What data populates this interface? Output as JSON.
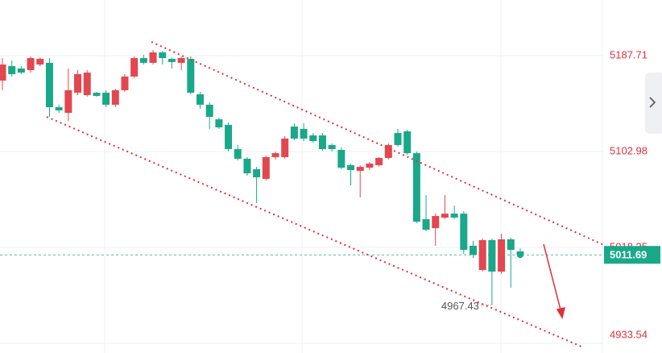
{
  "chart_data": {
    "type": "candlestick",
    "ohlc": [
      [
        5165.6,
        5185.5,
        5157.1,
        5179.8
      ],
      [
        5178.4,
        5183.4,
        5169.2,
        5171.3
      ],
      [
        5176.3,
        5178.4,
        5171.3,
        5172.7
      ],
      [
        5174.9,
        5187.0,
        5172.7,
        5185.5
      ],
      [
        5179.8,
        5186.0,
        5178.4,
        5184.8
      ],
      [
        5181.3,
        5185.5,
        5133.6,
        5142.1
      ],
      [
        5142.1,
        5144.3,
        5137.1,
        5139.3
      ],
      [
        5137.1,
        5176.3,
        5130.0,
        5157.1
      ],
      [
        5154.9,
        5174.9,
        5152.8,
        5171.3
      ],
      [
        5152.8,
        5174.9,
        5151.4,
        5172.7
      ],
      [
        5154.9,
        5155.6,
        5151.4,
        5152.1
      ],
      [
        5154.9,
        5157.1,
        5142.1,
        5144.3
      ],
      [
        5144.3,
        5158.5,
        5142.1,
        5157.1
      ],
      [
        5157.1,
        5171.3,
        5155.6,
        5169.2
      ],
      [
        5169.2,
        5187.0,
        5167.8,
        5185.5
      ],
      [
        5185.5,
        5188.4,
        5179.8,
        5181.3
      ],
      [
        5181.3,
        5192.7,
        5179.8,
        5190.5
      ],
      [
        5190.5,
        5192.0,
        5179.8,
        5185.5
      ],
      [
        5184.8,
        5186.0,
        5176.3,
        5182.0
      ],
      [
        5181.3,
        5187.0,
        5174.9,
        5185.5
      ],
      [
        5184.8,
        5187.0,
        5153.5,
        5154.9
      ],
      [
        5153.5,
        5155.6,
        5140.7,
        5144.3
      ],
      [
        5144.3,
        5146.4,
        5122.9,
        5133.6
      ],
      [
        5131.4,
        5132.8,
        5122.9,
        5124.3
      ],
      [
        5126.5,
        5128.6,
        5103.0,
        5105.1
      ],
      [
        5105.1,
        5108.7,
        5095.2,
        5096.6
      ],
      [
        5096.6,
        5098.0,
        5081.6,
        5083.7
      ],
      [
        5087.3,
        5089.4,
        5057.4,
        5080.2
      ],
      [
        5078.8,
        5099.4,
        5077.3,
        5098.0
      ],
      [
        5098.0,
        5102.9,
        5095.9,
        5101.5
      ],
      [
        5098.0,
        5116.5,
        5096.6,
        5114.4
      ],
      [
        5125.0,
        5127.9,
        5112.9,
        5114.4
      ],
      [
        5122.9,
        5127.9,
        5112.2,
        5114.4
      ],
      [
        5117.2,
        5119.3,
        5110.8,
        5112.2
      ],
      [
        5117.2,
        5119.3,
        5103.7,
        5105.1
      ],
      [
        5108.7,
        5110.1,
        5103.0,
        5105.1
      ],
      [
        5104.4,
        5106.6,
        5087.3,
        5088.7
      ],
      [
        5090.9,
        5092.3,
        5073.1,
        5086.6
      ],
      [
        5085.9,
        5090.9,
        5062.4,
        5089.4
      ],
      [
        5088.7,
        5093.7,
        5086.6,
        5092.3
      ],
      [
        5090.9,
        5098.0,
        5089.4,
        5097.3
      ],
      [
        5097.3,
        5110.1,
        5095.9,
        5108.7
      ],
      [
        5119.3,
        5122.9,
        5107.3,
        5108.7
      ],
      [
        5120.8,
        5122.2,
        5100.1,
        5101.5
      ],
      [
        5101.5,
        5103.0,
        5039.6,
        5041.0
      ],
      [
        5043.2,
        5064.5,
        5032.5,
        5033.9
      ],
      [
        5035.3,
        5048.1,
        5019.7,
        5046.0
      ],
      [
        5044.6,
        5064.5,
        5043.2,
        5048.1
      ],
      [
        5048.1,
        5055.2,
        5043.2,
        5044.6
      ],
      [
        5048.1,
        5050.3,
        5012.5,
        5016.1
      ],
      [
        5019.7,
        5024.0,
        5009.0,
        5011.8
      ],
      [
        4998.3,
        5026.1,
        4996.9,
        5024.7
      ],
      [
        5024.7,
        5026.1,
        4967.43,
        4996.9
      ],
      [
        4996.9,
        5030.4,
        4994.8,
        5025.4
      ],
      [
        5025.4,
        5026.8,
        4982.7,
        5016.1
      ],
      [
        5014.7,
        5017.5,
        5009.7,
        5011.69
      ]
    ],
    "up_color": "#e3474f",
    "down_color": "#19a88a",
    "ylim": [
      4925,
      5236.8
    ],
    "yticks": [
      5187.71,
      5102.98,
      5018.25,
      4933.54
    ],
    "grid": true
  }
}
